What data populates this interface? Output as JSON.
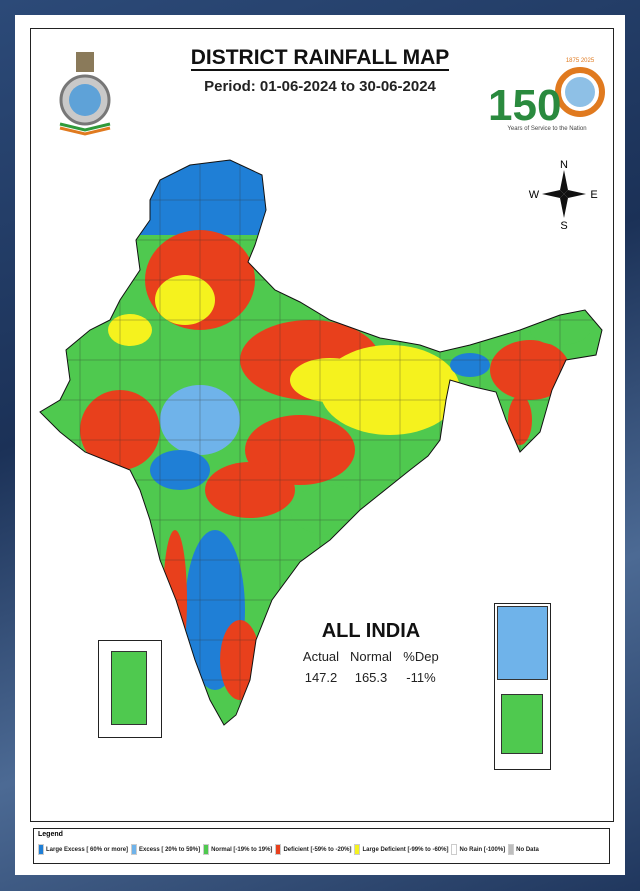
{
  "header": {
    "title": "DISTRICT RAINFALL MAP",
    "period": "Period: 01-06-2024 to 30-06-2024"
  },
  "logos": {
    "left": "IMD emblem",
    "right_number": "150",
    "right_years": "1875 2025",
    "right_tagline": "Years of Service to the Nation"
  },
  "compass": {
    "n": "N",
    "s": "S",
    "e": "E",
    "w": "W"
  },
  "summary": {
    "title": "ALL INDIA",
    "headers": [
      "Actual",
      "Normal",
      "%Dep"
    ],
    "values": [
      "147.2",
      "165.3",
      "-11%"
    ]
  },
  "legend": {
    "title": "Legend",
    "items": [
      {
        "label": "Large Excess [ 60% or more]",
        "color": "#1f7fd6"
      },
      {
        "label": "Excess [ 20% to 59%]",
        "color": "#6fb3ea"
      },
      {
        "label": "Normal [-19% to 19%]",
        "color": "#4fc94f"
      },
      {
        "label": "Deficient [-59% to -20%]",
        "color": "#e8401c"
      },
      {
        "label": "Large Deficient [-99% to -60%]",
        "color": "#f5f21e"
      },
      {
        "label": "No Rain [-100%]",
        "color": "#ffffff"
      },
      {
        "label": "No Data",
        "color": "#bdbdbd"
      }
    ]
  }
}
